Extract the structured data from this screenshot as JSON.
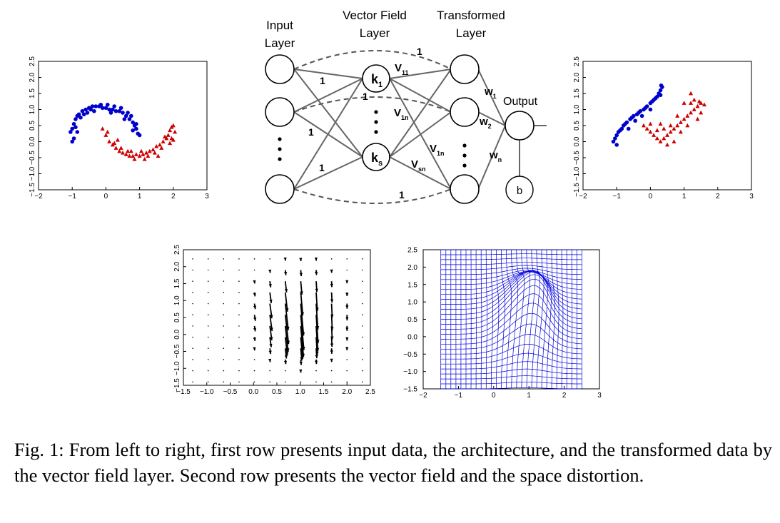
{
  "figure": {
    "caption": "Fig. 1: From left to right, first row presents input data, the architecture, and the transformed data by the vector field layer. Second row presents the vector field and the space distortion."
  },
  "architecture": {
    "headers": {
      "input": [
        "Input",
        "Layer"
      ],
      "vector_field": [
        "Vector Field",
        "Layer"
      ],
      "transformed": [
        "Transformed",
        "Layer"
      ]
    },
    "kernel_labels": [
      {
        "main": "k",
        "sub": "1"
      },
      {
        "main": "k",
        "sub": "s"
      }
    ],
    "edge_weight_labels": [
      "1",
      "1",
      "1",
      "1",
      "1",
      "1"
    ],
    "v_labels": [
      {
        "main": "V",
        "sub": "11"
      },
      {
        "main": "V",
        "sub": "1n"
      },
      {
        "main": "V",
        "sub": "1n"
      },
      {
        "main": "V",
        "sub": "sn"
      }
    ],
    "w_labels": [
      {
        "main": "w",
        "sub": "1"
      },
      {
        "main": "w",
        "sub": "2"
      },
      {
        "main": "w",
        "sub": "n"
      }
    ],
    "output_label": "Output",
    "bias_label": "b"
  },
  "chart_data": [
    {
      "id": "input-data",
      "type": "scatter",
      "xlim": [
        -2,
        3
      ],
      "ylim": [
        -1.5,
        2.5
      ],
      "xticks": [
        "−2",
        "−1",
        "0",
        "1",
        "2",
        "3"
      ],
      "yticks": [
        "−1.5",
        "−1.0",
        "−0.5",
        "0.0",
        "0.5",
        "1.0",
        "1.5",
        "2.0",
        "2.5"
      ],
      "series": [
        {
          "marker": "circle",
          "color": "#0000cc",
          "points": [
            [
              -1.0,
              0.4
            ],
            [
              -0.95,
              0.55
            ],
            [
              -0.9,
              0.7
            ],
            [
              -0.85,
              0.8
            ],
            [
              -0.8,
              0.85
            ],
            [
              -0.7,
              0.95
            ],
            [
              -0.6,
              1.0
            ],
            [
              -0.5,
              1.05
            ],
            [
              -0.4,
              1.1
            ],
            [
              -0.3,
              1.1
            ],
            [
              -0.2,
              1.1
            ],
            [
              -0.1,
              1.05
            ],
            [
              0.0,
              1.05
            ],
            [
              0.1,
              1.0
            ],
            [
              0.2,
              1.0
            ],
            [
              0.3,
              0.95
            ],
            [
              0.4,
              0.95
            ],
            [
              0.5,
              0.9
            ],
            [
              0.6,
              0.8
            ],
            [
              0.7,
              0.7
            ],
            [
              0.8,
              0.6
            ],
            [
              0.85,
              0.5
            ],
            [
              0.9,
              0.4
            ],
            [
              0.95,
              0.25
            ],
            [
              1.0,
              0.2
            ],
            [
              -1.05,
              0.3
            ],
            [
              -0.9,
              0.45
            ],
            [
              -0.75,
              0.75
            ],
            [
              -0.55,
              0.9
            ],
            [
              -0.35,
              0.95
            ],
            [
              -0.15,
              1.15
            ],
            [
              0.05,
              1.15
            ],
            [
              0.25,
              1.1
            ],
            [
              0.45,
              1.05
            ],
            [
              0.65,
              0.9
            ],
            [
              0.75,
              0.8
            ],
            [
              0.9,
              0.55
            ],
            [
              -1.0,
              0.0
            ],
            [
              -0.95,
              0.1
            ],
            [
              -0.85,
              0.3
            ],
            [
              -0.65,
              0.85
            ],
            [
              -0.45,
              1.0
            ],
            [
              0.15,
              0.9
            ],
            [
              0.55,
              0.7
            ],
            [
              0.8,
              0.35
            ]
          ]
        },
        {
          "marker": "triangle",
          "color": "#cc0000",
          "points": [
            [
              -0.1,
              0.4
            ],
            [
              0.0,
              0.2
            ],
            [
              0.1,
              0.0
            ],
            [
              0.2,
              -0.1
            ],
            [
              0.3,
              -0.2
            ],
            [
              0.4,
              -0.3
            ],
            [
              0.5,
              -0.35
            ],
            [
              0.6,
              -0.4
            ],
            [
              0.7,
              -0.45
            ],
            [
              0.8,
              -0.45
            ],
            [
              0.9,
              -0.4
            ],
            [
              1.0,
              -0.45
            ],
            [
              1.1,
              -0.4
            ],
            [
              1.2,
              -0.35
            ],
            [
              1.3,
              -0.3
            ],
            [
              1.4,
              -0.25
            ],
            [
              1.5,
              -0.15
            ],
            [
              1.6,
              -0.1
            ],
            [
              1.7,
              0.0
            ],
            [
              1.8,
              0.1
            ],
            [
              1.85,
              0.2
            ],
            [
              1.9,
              0.35
            ],
            [
              1.95,
              0.45
            ],
            [
              2.0,
              0.5
            ],
            [
              2.05,
              0.3
            ],
            [
              0.05,
              0.3
            ],
            [
              0.25,
              -0.05
            ],
            [
              0.45,
              -0.2
            ],
            [
              0.65,
              -0.3
            ],
            [
              0.85,
              -0.55
            ],
            [
              1.05,
              -0.3
            ],
            [
              1.25,
              -0.45
            ],
            [
              1.45,
              -0.35
            ],
            [
              1.65,
              -0.2
            ],
            [
              1.75,
              0.15
            ],
            [
              1.95,
              0.1
            ],
            [
              2.0,
              0.05
            ],
            [
              0.35,
              0.05
            ],
            [
              0.75,
              -0.3
            ],
            [
              1.15,
              -0.55
            ],
            [
              1.55,
              -0.45
            ],
            [
              1.9,
              -0.05
            ]
          ]
        }
      ]
    },
    {
      "id": "transformed-data",
      "type": "scatter",
      "xlim": [
        -2,
        3
      ],
      "ylim": [
        -1.5,
        2.5
      ],
      "xticks": [
        "−2",
        "−1",
        "0",
        "1",
        "2",
        "3"
      ],
      "yticks": [
        "−1.5",
        "−1.0",
        "−0.5",
        "0.0",
        "0.5",
        "1.0",
        "1.5",
        "2.0",
        "2.5"
      ],
      "series": [
        {
          "marker": "circle",
          "color": "#0000cc",
          "points": [
            [
              -1.1,
              0.0
            ],
            [
              -1.0,
              0.2
            ],
            [
              -0.9,
              0.35
            ],
            [
              -0.8,
              0.5
            ],
            [
              -0.7,
              0.6
            ],
            [
              -0.6,
              0.7
            ],
            [
              -0.5,
              0.8
            ],
            [
              -0.4,
              0.85
            ],
            [
              -0.3,
              0.95
            ],
            [
              -0.2,
              1.0
            ],
            [
              -0.1,
              1.1
            ],
            [
              0.0,
              1.2
            ],
            [
              0.1,
              1.3
            ],
            [
              0.2,
              1.4
            ],
            [
              0.25,
              1.5
            ],
            [
              0.3,
              1.6
            ],
            [
              0.35,
              1.7
            ],
            [
              -1.05,
              0.1
            ],
            [
              -0.95,
              0.3
            ],
            [
              -0.85,
              0.4
            ],
            [
              -0.75,
              0.55
            ],
            [
              -0.55,
              0.75
            ],
            [
              -0.35,
              0.9
            ],
            [
              -0.15,
              1.05
            ],
            [
              0.05,
              1.25
            ],
            [
              0.15,
              1.35
            ],
            [
              0.3,
              1.45
            ],
            [
              0.32,
              1.75
            ],
            [
              -0.65,
              0.4
            ],
            [
              -0.45,
              0.65
            ],
            [
              -0.25,
              0.8
            ],
            [
              0.0,
              1.0
            ],
            [
              -1.0,
              -0.1
            ]
          ]
        },
        {
          "marker": "triangle",
          "color": "#cc0000",
          "points": [
            [
              -0.2,
              0.5
            ],
            [
              -0.1,
              0.4
            ],
            [
              0.0,
              0.3
            ],
            [
              0.1,
              0.2
            ],
            [
              0.2,
              0.1
            ],
            [
              0.3,
              0.0
            ],
            [
              0.4,
              0.1
            ],
            [
              0.5,
              0.2
            ],
            [
              0.6,
              0.3
            ],
            [
              0.7,
              0.4
            ],
            [
              0.8,
              0.5
            ],
            [
              0.9,
              0.6
            ],
            [
              1.0,
              0.7
            ],
            [
              1.1,
              0.8
            ],
            [
              1.2,
              0.9
            ],
            [
              1.3,
              1.0
            ],
            [
              1.4,
              1.1
            ],
            [
              1.5,
              1.2
            ],
            [
              1.6,
              1.15
            ],
            [
              1.2,
              1.5
            ],
            [
              1.3,
              1.3
            ],
            [
              1.0,
              1.2
            ],
            [
              0.8,
              0.8
            ],
            [
              0.6,
              0.5
            ],
            [
              0.4,
              0.4
            ],
            [
              0.2,
              0.35
            ],
            [
              0.0,
              0.55
            ],
            [
              0.9,
              0.3
            ],
            [
              1.1,
              0.5
            ],
            [
              1.5,
              0.9
            ],
            [
              1.4,
              0.7
            ],
            [
              0.7,
              0.0
            ],
            [
              0.5,
              -0.1
            ],
            [
              1.2,
              1.2
            ],
            [
              1.45,
              1.25
            ],
            [
              0.3,
              0.55
            ]
          ]
        }
      ]
    },
    {
      "id": "vector-field",
      "type": "quiver",
      "xlim": [
        -1.5,
        2.5
      ],
      "ylim": [
        -1.5,
        2.5
      ],
      "xticks": [
        "−1.5",
        "−1.0",
        "−0.5",
        "0.0",
        "0.5",
        "1.0",
        "1.5",
        "2.0",
        "2.5"
      ],
      "yticks": [
        "−1.5",
        "−1.0",
        "−0.5",
        "0.0",
        "0.5",
        "1.0",
        "1.5",
        "2.0",
        "2.5"
      ],
      "vector_center": [
        1.0,
        0.6
      ],
      "vector_spread": 0.55
    },
    {
      "id": "space-distortion",
      "type": "grid-warp",
      "xlim": [
        -2,
        3
      ],
      "ylim": [
        -1.5,
        2.5
      ],
      "xticks": [
        "−2",
        "−1",
        "0",
        "1",
        "2",
        "3"
      ],
      "yticks": [
        "−1.5",
        "−1.0",
        "−0.5",
        "0.0",
        "0.5",
        "1.0",
        "1.5",
        "2.0",
        "2.5"
      ],
      "grid_range": [
        [
          -1.5,
          2.5
        ],
        [
          -1.5,
          2.5
        ]
      ],
      "grid_lines": 28,
      "color": "#0000dd"
    }
  ]
}
